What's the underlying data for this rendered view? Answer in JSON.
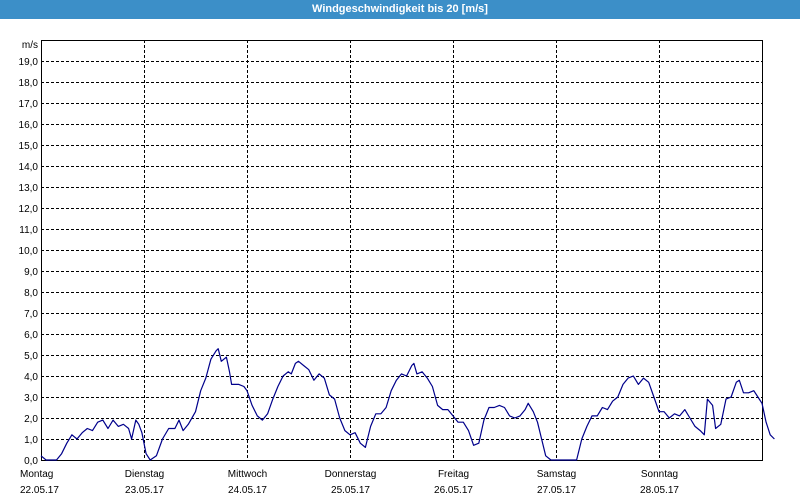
{
  "window": {
    "title": "Windgeschwindigkeit bis 20 [m/s]"
  },
  "chart_data": {
    "type": "line",
    "title": "Windgeschwindigkeit bis 20 [m/s]",
    "ylabel": "m/s",
    "ylim": [
      0,
      20
    ],
    "xlim": [
      0,
      7
    ],
    "grid": true,
    "yticks": [
      "0,0",
      "1,0",
      "2,0",
      "3,0",
      "4,0",
      "5,0",
      "6,0",
      "7,0",
      "8,0",
      "9,0",
      "10,0",
      "11,0",
      "12,0",
      "13,0",
      "14,0",
      "15,0",
      "16,0",
      "17,0",
      "18,0",
      "19,0"
    ],
    "days": [
      {
        "name": "Montag",
        "date": "22.05.17"
      },
      {
        "name": "Dienstag",
        "date": "23.05.17"
      },
      {
        "name": "Mittwoch",
        "date": "24.05.17"
      },
      {
        "name": "Donnerstag",
        "date": "25.05.17"
      },
      {
        "name": "Freitag",
        "date": "26.05.17"
      },
      {
        "name": "Samstag",
        "date": "27.05.17"
      },
      {
        "name": "Sonntag",
        "date": "28.05.17"
      }
    ],
    "series": [
      {
        "color": "#00008b",
        "points": [
          [
            0.0,
            0.2
          ],
          [
            0.05,
            0.0
          ],
          [
            0.15,
            0.0
          ],
          [
            0.2,
            0.3
          ],
          [
            0.25,
            0.8
          ],
          [
            0.3,
            1.2
          ],
          [
            0.35,
            1.0
          ],
          [
            0.4,
            1.3
          ],
          [
            0.45,
            1.5
          ],
          [
            0.5,
            1.4
          ],
          [
            0.55,
            1.8
          ],
          [
            0.6,
            1.9
          ],
          [
            0.65,
            1.5
          ],
          [
            0.7,
            1.9
          ],
          [
            0.75,
            1.6
          ],
          [
            0.8,
            1.7
          ],
          [
            0.85,
            1.5
          ],
          [
            0.88,
            1.0
          ],
          [
            0.92,
            1.9
          ],
          [
            0.95,
            1.7
          ],
          [
            0.98,
            1.3
          ],
          [
            1.02,
            0.3
          ],
          [
            1.06,
            0.0
          ],
          [
            1.12,
            0.2
          ],
          [
            1.18,
            1.0
          ],
          [
            1.24,
            1.5
          ],
          [
            1.3,
            1.5
          ],
          [
            1.34,
            1.9
          ],
          [
            1.38,
            1.4
          ],
          [
            1.43,
            1.7
          ],
          [
            1.5,
            2.3
          ],
          [
            1.55,
            3.3
          ],
          [
            1.6,
            3.9
          ],
          [
            1.65,
            4.8
          ],
          [
            1.7,
            5.2
          ],
          [
            1.72,
            5.3
          ],
          [
            1.75,
            4.7
          ],
          [
            1.8,
            4.9
          ],
          [
            1.83,
            4.2
          ],
          [
            1.85,
            3.6
          ],
          [
            1.92,
            3.6
          ],
          [
            1.97,
            3.5
          ],
          [
            2.0,
            3.3
          ],
          [
            2.05,
            2.6
          ],
          [
            2.1,
            2.1
          ],
          [
            2.15,
            1.9
          ],
          [
            2.2,
            2.2
          ],
          [
            2.25,
            2.9
          ],
          [
            2.3,
            3.5
          ],
          [
            2.35,
            4.0
          ],
          [
            2.4,
            4.2
          ],
          [
            2.43,
            4.1
          ],
          [
            2.47,
            4.6
          ],
          [
            2.5,
            4.7
          ],
          [
            2.55,
            4.5
          ],
          [
            2.6,
            4.3
          ],
          [
            2.65,
            3.8
          ],
          [
            2.7,
            4.1
          ],
          [
            2.75,
            3.9
          ],
          [
            2.8,
            3.1
          ],
          [
            2.85,
            2.9
          ],
          [
            2.9,
            2.0
          ],
          [
            2.95,
            1.4
          ],
          [
            3.0,
            1.2
          ],
          [
            3.05,
            1.3
          ],
          [
            3.1,
            0.8
          ],
          [
            3.15,
            0.6
          ],
          [
            3.2,
            1.6
          ],
          [
            3.25,
            2.2
          ],
          [
            3.3,
            2.2
          ],
          [
            3.35,
            2.5
          ],
          [
            3.4,
            3.3
          ],
          [
            3.45,
            3.8
          ],
          [
            3.5,
            4.1
          ],
          [
            3.55,
            4.0
          ],
          [
            3.6,
            4.5
          ],
          [
            3.62,
            4.6
          ],
          [
            3.65,
            4.1
          ],
          [
            3.7,
            4.2
          ],
          [
            3.75,
            3.9
          ],
          [
            3.8,
            3.5
          ],
          [
            3.85,
            2.6
          ],
          [
            3.9,
            2.4
          ],
          [
            3.95,
            2.4
          ],
          [
            4.0,
            2.1
          ],
          [
            4.05,
            1.8
          ],
          [
            4.1,
            1.8
          ],
          [
            4.15,
            1.4
          ],
          [
            4.2,
            0.7
          ],
          [
            4.25,
            0.8
          ],
          [
            4.3,
            1.9
          ],
          [
            4.35,
            2.5
          ],
          [
            4.4,
            2.5
          ],
          [
            4.45,
            2.6
          ],
          [
            4.5,
            2.5
          ],
          [
            4.55,
            2.1
          ],
          [
            4.6,
            2.0
          ],
          [
            4.65,
            2.1
          ],
          [
            4.7,
            2.4
          ],
          [
            4.73,
            2.7
          ],
          [
            4.78,
            2.3
          ],
          [
            4.82,
            1.8
          ],
          [
            4.86,
            1.0
          ],
          [
            4.9,
            0.2
          ],
          [
            4.95,
            0.0
          ],
          [
            5.2,
            0.0
          ],
          [
            5.25,
            1.0
          ],
          [
            5.3,
            1.6
          ],
          [
            5.35,
            2.1
          ],
          [
            5.4,
            2.1
          ],
          [
            5.45,
            2.5
          ],
          [
            5.5,
            2.4
          ],
          [
            5.55,
            2.8
          ],
          [
            5.6,
            3.0
          ],
          [
            5.65,
            3.6
          ],
          [
            5.7,
            3.9
          ],
          [
            5.75,
            4.0
          ],
          [
            5.8,
            3.6
          ],
          [
            5.85,
            3.9
          ],
          [
            5.9,
            3.7
          ],
          [
            5.95,
            3.0
          ],
          [
            6.0,
            2.3
          ],
          [
            6.05,
            2.3
          ],
          [
            6.1,
            2.0
          ],
          [
            6.15,
            2.2
          ],
          [
            6.2,
            2.1
          ],
          [
            6.25,
            2.4
          ],
          [
            6.3,
            2.0
          ],
          [
            6.35,
            1.6
          ],
          [
            6.4,
            1.4
          ],
          [
            6.44,
            1.2
          ],
          [
            6.47,
            2.9
          ],
          [
            6.52,
            2.6
          ],
          [
            6.55,
            1.5
          ],
          [
            6.6,
            1.7
          ],
          [
            6.65,
            2.9
          ],
          [
            6.7,
            3.0
          ],
          [
            6.75,
            3.7
          ],
          [
            6.78,
            3.8
          ],
          [
            6.82,
            3.2
          ],
          [
            6.87,
            3.2
          ],
          [
            6.92,
            3.3
          ],
          [
            6.96,
            3.0
          ],
          [
            7.0,
            2.7
          ],
          [
            7.04,
            1.8
          ],
          [
            7.08,
            1.2
          ],
          [
            7.12,
            1.0
          ]
        ]
      }
    ]
  }
}
